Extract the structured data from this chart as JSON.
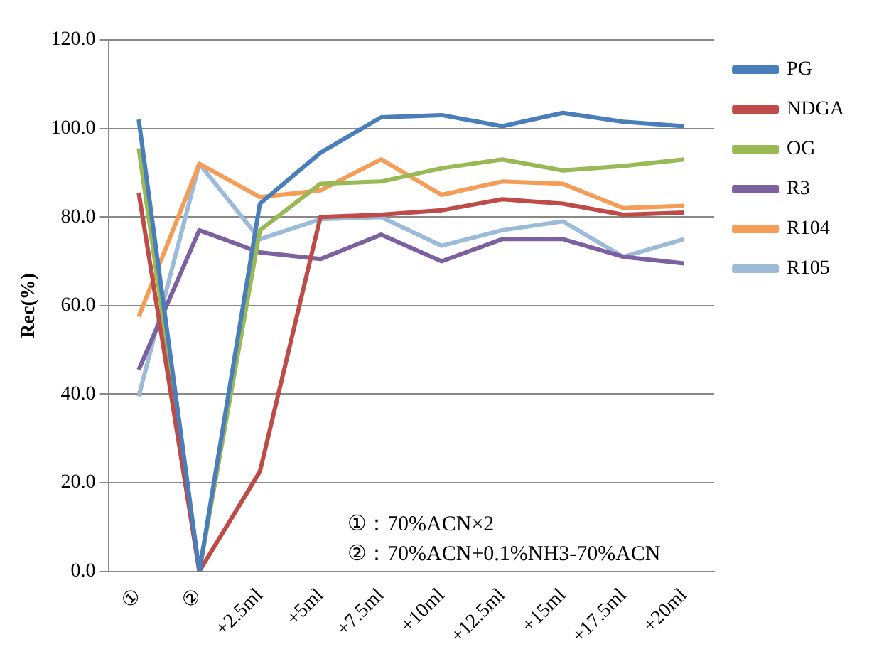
{
  "chart_data": {
    "type": "line",
    "ylabel": "Rec(%)",
    "categories": [
      "①",
      "②",
      "+2.5ml",
      "+5ml",
      "+7.5ml",
      "+10ml",
      "+12.5ml",
      "+15ml",
      "+17.5ml",
      "+20ml"
    ],
    "series": [
      {
        "name": "PG",
        "color": "#4a7ebb",
        "values": [
          102,
          0,
          83,
          94.5,
          102.5,
          103,
          100.5,
          103.5,
          101.5,
          100.5
        ]
      },
      {
        "name": "NDGA",
        "color": "#be4b48",
        "values": [
          85.5,
          0,
          22.5,
          80,
          80.5,
          81.5,
          84,
          83,
          80.5,
          81
        ]
      },
      {
        "name": "OG",
        "color": "#98b954",
        "values": [
          95.5,
          0,
          77,
          87.5,
          88,
          91,
          93,
          90.5,
          91.5,
          93
        ]
      },
      {
        "name": "R3",
        "color": "#7d60a0",
        "values": [
          45.5,
          77,
          72,
          70.5,
          76,
          70,
          75,
          75,
          71,
          69.5
        ]
      },
      {
        "name": "R104",
        "color": "#f59d56",
        "values": [
          57.5,
          92,
          84.5,
          86,
          93,
          85,
          88,
          87.5,
          82,
          82.5
        ]
      },
      {
        "name": "R105",
        "color": "#9bbbd9",
        "values": [
          39.5,
          92,
          75,
          79.5,
          80,
          73.5,
          77,
          79,
          71,
          75
        ]
      }
    ],
    "ylim": [
      0,
      120
    ],
    "yticks": [
      {
        "value": 0,
        "label": "0.0"
      },
      {
        "value": 20,
        "label": "20.0"
      },
      {
        "value": 40,
        "label": "40.0"
      },
      {
        "value": 60,
        "label": "60.0"
      },
      {
        "value": 80,
        "label": "80.0"
      },
      {
        "value": 100,
        "label": "100.0"
      },
      {
        "value": 120,
        "label": "120.0"
      }
    ],
    "grid": "y",
    "legend": "right",
    "marker": "none",
    "line_style": "solid",
    "annotations": [
      "①：70%ACN×2",
      "②：70%ACN+0.1%NH3-70%ACN"
    ]
  }
}
